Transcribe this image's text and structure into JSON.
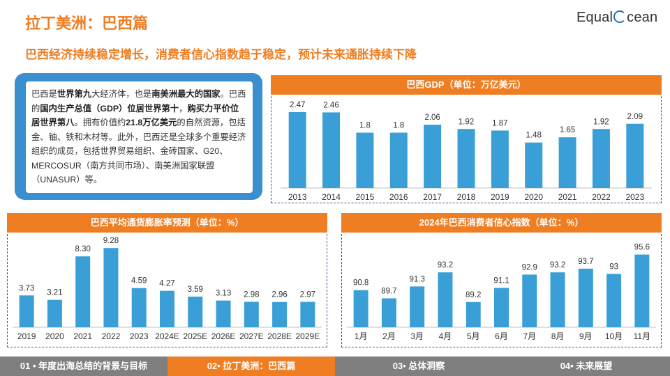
{
  "page": {
    "title": "拉丁美洲：巴西篇",
    "subtitle": "巴西经济持续稳定增长，消费者信心指数趋于稳定，预计未来通胀持续下降",
    "logo": {
      "left": "Equal",
      "right": "cean"
    }
  },
  "description": {
    "segments": [
      {
        "text": "巴西是",
        "bold": false
      },
      {
        "text": "世界第九",
        "bold": true
      },
      {
        "text": "大经济体，也是",
        "bold": false
      },
      {
        "text": "南美洲最大的国家",
        "bold": true
      },
      {
        "text": "。巴西的",
        "bold": false
      },
      {
        "text": "国内生产总值（GDP）位居世界第十",
        "bold": true
      },
      {
        "text": "，",
        "bold": false
      },
      {
        "text": "购买力平价位居世界第八",
        "bold": true
      },
      {
        "text": "。拥有价值约",
        "bold": false
      },
      {
        "text": "21.8万亿美元",
        "bold": true
      },
      {
        "text": "的自然资源，包括金、铀、铁和木材等。此外，巴西还是全球多个重要经济组织的成员，包括世界贸易组织、金砖国家、G20、MERCOSUR（南方共同市场）、南美洲国家联盟（UNASUR）等。",
        "bold": false
      }
    ]
  },
  "colors": {
    "accent": "#ef7d22",
    "bar": "#3a9fd6",
    "panel_border": "#4a4f8c",
    "desc_bg": "#3a8fce",
    "footer_gray": "#7f7f7f"
  },
  "footer": {
    "tabs": [
      {
        "label": "01 • 年度出海总结的背景与目标",
        "active": false
      },
      {
        "label": "02• 拉丁美洲：巴西篇",
        "active": true
      },
      {
        "label": "03• 总体洞察",
        "active": false
      },
      {
        "label": "04• 未来展望",
        "active": false
      }
    ]
  },
  "chart_data": [
    {
      "type": "bar",
      "title": "巴西GDP（单位：万亿美元）",
      "categories": [
        "2013",
        "2014",
        "2015",
        "2016",
        "2017",
        "2018",
        "2019",
        "2020",
        "2021",
        "2022",
        "2023"
      ],
      "values": [
        2.47,
        2.46,
        1.8,
        1.8,
        2.06,
        1.92,
        1.87,
        1.48,
        1.65,
        1.92,
        2.09
      ],
      "labels": [
        "2.47",
        "2.46",
        "1.8",
        "1.8",
        "2.06",
        "1.92",
        "1.87",
        "1.48",
        "1.65",
        "1.92",
        "2.09"
      ],
      "ylim": [
        0,
        2.9
      ],
      "grid": false
    },
    {
      "type": "bar",
      "title": "巴西平均通货膨胀率预测（单位：%）",
      "categories": [
        "2019",
        "2020",
        "2021",
        "2022",
        "2023",
        "2024E",
        "2025E",
        "2026E",
        "2027E",
        "2028E",
        "2029E"
      ],
      "values": [
        3.73,
        3.21,
        8.3,
        9.28,
        4.59,
        4.27,
        3.59,
        3.13,
        2.98,
        2.96,
        2.97
      ],
      "labels": [
        "3.73",
        "3.21",
        "8.30",
        "9.28",
        "4.59",
        "4.27",
        "3.59",
        "3.13",
        "2.98",
        "2.96",
        "2.97"
      ],
      "ylim": [
        0,
        10.6
      ],
      "grid": false
    },
    {
      "type": "bar",
      "title": "2024年巴西消费者信心指数（单位：%）",
      "categories": [
        "1月",
        "2月",
        "3月",
        "4月",
        "5月",
        "6月",
        "7月",
        "8月",
        "9月",
        "10月",
        "11月"
      ],
      "values": [
        90.8,
        89.7,
        91.3,
        93.2,
        89.2,
        91.1,
        92.9,
        93.2,
        93.7,
        93,
        95.6
      ],
      "labels": [
        "90.8",
        "89.7",
        "91.3",
        "93.2",
        "89.2",
        "91.1",
        "92.9",
        "93.2",
        "93.7",
        "93",
        "95.6"
      ],
      "ylim": [
        85.8,
        98
      ],
      "grid": false
    }
  ]
}
